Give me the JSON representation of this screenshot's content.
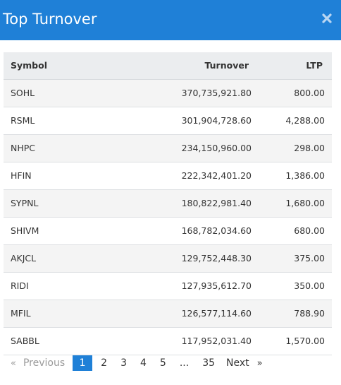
{
  "modal": {
    "title": "Top Turnover",
    "close_icon": "close-icon"
  },
  "table": {
    "headers": {
      "symbol": "Symbol",
      "turnover": "Turnover",
      "ltp": "LTP"
    },
    "rows": [
      {
        "symbol": "SOHL",
        "turnover": "370,735,921.80",
        "ltp": "800.00"
      },
      {
        "symbol": "RSML",
        "turnover": "301,904,728.60",
        "ltp": "4,288.00"
      },
      {
        "symbol": "NHPC",
        "turnover": "234,150,960.00",
        "ltp": "298.00"
      },
      {
        "symbol": "HFIN",
        "turnover": "222,342,401.20",
        "ltp": "1,386.00"
      },
      {
        "symbol": "SYPNL",
        "turnover": "180,822,981.40",
        "ltp": "1,680.00"
      },
      {
        "symbol": "SHIVM",
        "turnover": "168,782,034.60",
        "ltp": "680.00"
      },
      {
        "symbol": "AKJCL",
        "turnover": "129,752,448.30",
        "ltp": "375.00"
      },
      {
        "symbol": "RIDI",
        "turnover": "127,935,612.70",
        "ltp": "350.00"
      },
      {
        "symbol": "MFIL",
        "turnover": "126,577,114.60",
        "ltp": "788.90"
      },
      {
        "symbol": "SABBL",
        "turnover": "117,952,031.40",
        "ltp": "1,570.00"
      }
    ]
  },
  "pagination": {
    "prev_arrow": "«",
    "prev_label": "Previous",
    "pages": [
      "1",
      "2",
      "3",
      "4",
      "5"
    ],
    "current_page": "1",
    "ellipsis": "...",
    "last_page": "35",
    "next_label": "Next",
    "next_arrow": "»"
  },
  "colors": {
    "header_bg": "#1f80d7",
    "active_page_bg": "#1f80d7",
    "table_header_bg": "#ebedef",
    "row_stripe": "#f4f4f4"
  }
}
